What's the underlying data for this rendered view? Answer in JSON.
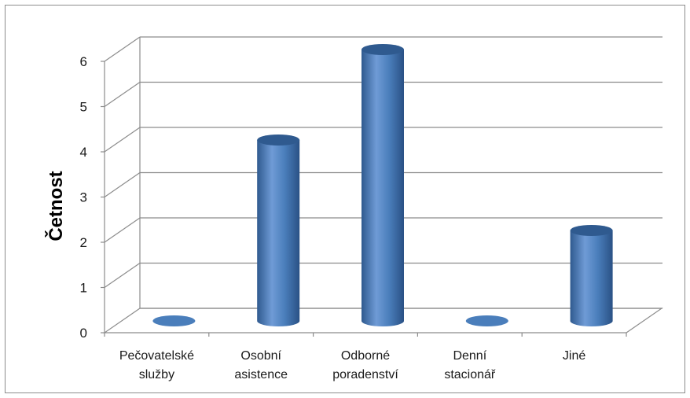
{
  "chart_data": {
    "type": "bar",
    "style": "3d-cylinder",
    "title": "",
    "xlabel": "",
    "ylabel": "Četnost",
    "ylim": [
      0,
      6
    ],
    "yticks": [
      "0",
      "1",
      "2",
      "3",
      "4",
      "5",
      "6"
    ],
    "grid": true,
    "legend": "none",
    "categories": [
      [
        "Pečovatelské",
        "služby"
      ],
      [
        "Osobní",
        "asistence"
      ],
      [
        "Odborné",
        "poradenství"
      ],
      [
        "Denní",
        "stacionář"
      ],
      [
        "Jiné"
      ]
    ],
    "values": [
      0,
      4,
      6,
      0,
      2
    ],
    "colors": {
      "bar": "#4a7ebb",
      "bar_light": "#7fa6d8",
      "bar_dark": "#2f5a8f",
      "grid": "#8c8c8c"
    }
  }
}
